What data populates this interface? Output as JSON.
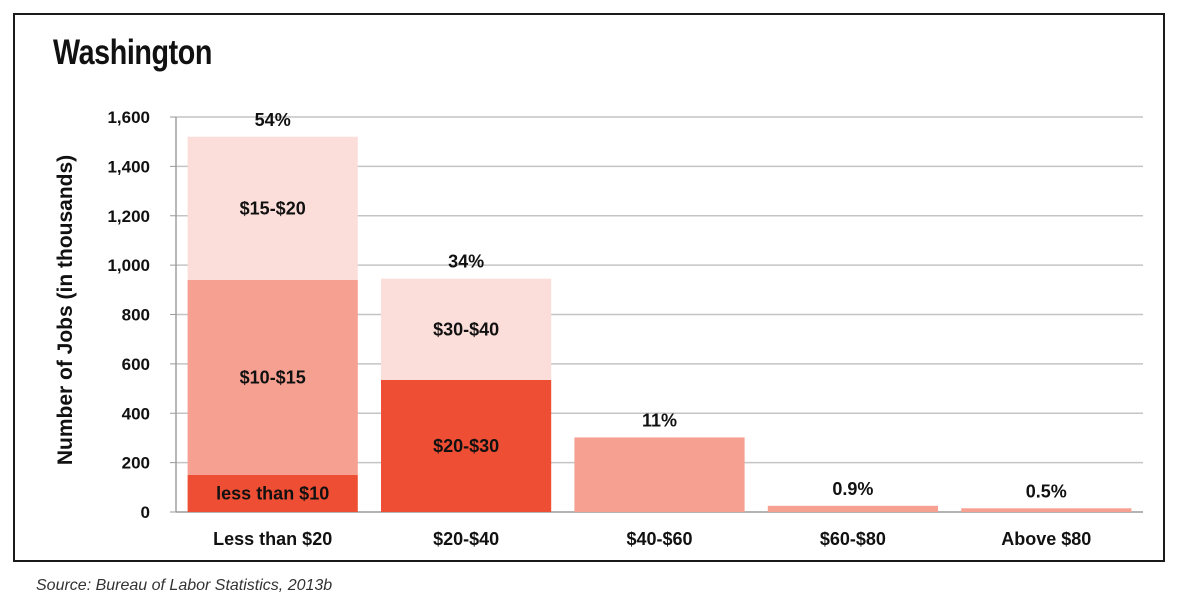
{
  "page": {
    "title": "Washington",
    "source": "Source: Bureau of Labor Statistics, 2013b"
  },
  "chart_data": {
    "type": "bar",
    "stacked": true,
    "title": "Washington",
    "xlabel": "",
    "ylabel": "Number of Jobs (in thousands)",
    "ylim": [
      0,
      1600
    ],
    "yticks": [
      0,
      200,
      400,
      600,
      800,
      1000,
      1200,
      1400,
      1600
    ],
    "ytick_labels": [
      "0",
      "200",
      "400",
      "600",
      "800",
      "1,000",
      "1,200",
      "1,400",
      "1,600"
    ],
    "grid": true,
    "categories": [
      "Less than $20",
      "$20-$40",
      "$40-$60",
      "$60-$80",
      "Above $80"
    ],
    "bars": [
      {
        "category": "Less than $20",
        "percent_label": "54%",
        "segments": [
          {
            "label": "less than $10",
            "value": 150,
            "color": "#ee4e33"
          },
          {
            "label": "$10-$15",
            "value": 790,
            "color": "#f5a091"
          },
          {
            "label": "$15-$20",
            "value": 580,
            "color": "#fbded9"
          }
        ]
      },
      {
        "category": "$20-$40",
        "percent_label": "34%",
        "segments": [
          {
            "label": "$20-$30",
            "value": 535,
            "color": "#ee4e33"
          },
          {
            "label": "$30-$40",
            "value": 410,
            "color": "#fbded9"
          }
        ]
      },
      {
        "category": "$40-$60",
        "percent_label": "11%",
        "segments": [
          {
            "label": "",
            "value": 302,
            "color": "#f5a091"
          }
        ]
      },
      {
        "category": "$60-$80",
        "percent_label": "0.9%",
        "segments": [
          {
            "label": "",
            "value": 25,
            "color": "#f5a091"
          }
        ]
      },
      {
        "category": "Above $80",
        "percent_label": "0.5%",
        "segments": [
          {
            "label": "",
            "value": 15,
            "color": "#f5a091"
          }
        ]
      }
    ]
  }
}
